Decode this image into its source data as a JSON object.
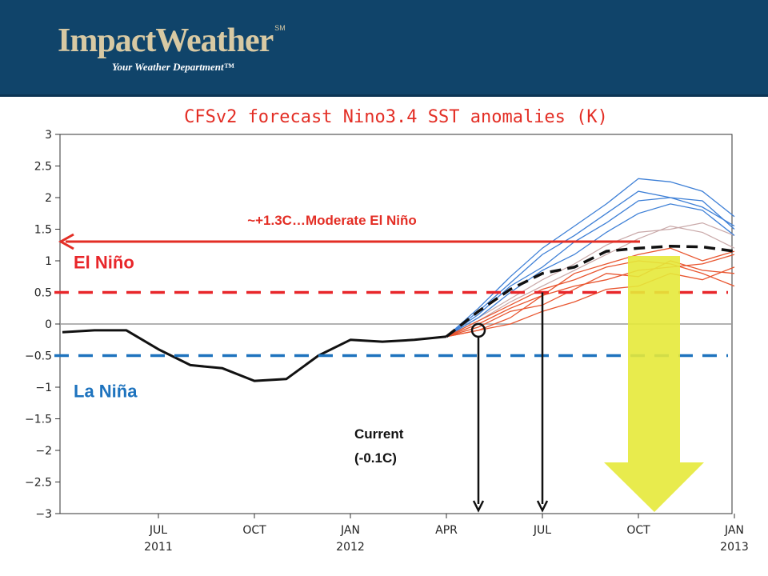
{
  "header": {
    "logo": "ImpactWeather",
    "logo_mark": "SM",
    "tagline": "Your Weather Department™"
  },
  "chart_data": {
    "type": "line",
    "title": "CFSv2 forecast Nino3.4 SST anomalies (K)",
    "xlabel": "",
    "ylabel": "",
    "ylim": [
      -3,
      3
    ],
    "grid": false,
    "y_ticks": [
      -3,
      -2.5,
      -2,
      -1.5,
      -1,
      -0.5,
      0,
      0.5,
      1,
      1.5,
      2,
      2.5,
      3
    ],
    "y_tick_labels": [
      "−3",
      "−2.5",
      "−2",
      "−1.5",
      "−1",
      "−0.5",
      "0",
      "0.5",
      "1",
      "1.5",
      "2",
      "2.5",
      "3"
    ],
    "x_ticks": [
      {
        "month": "JUL",
        "year": "2011",
        "pos": 3
      },
      {
        "month": "OCT",
        "year": "",
        "pos": 6
      },
      {
        "month": "JAN",
        "year": "2012",
        "pos": 9
      },
      {
        "month": "APR",
        "year": "",
        "pos": 12
      },
      {
        "month": "JUL",
        "year": "",
        "pos": 15
      },
      {
        "month": "OCT",
        "year": "",
        "pos": 18
      },
      {
        "month": "JAN",
        "year": "2013",
        "pos": 21
      }
    ],
    "xlim": [
      0,
      21
    ],
    "observed": {
      "x": [
        0,
        1,
        2,
        3,
        4,
        5,
        6,
        7,
        8,
        9,
        10,
        11,
        12
      ],
      "y": [
        -0.13,
        -0.1,
        -0.1,
        -0.4,
        -0.65,
        -0.7,
        -0.9,
        -0.87,
        -0.5,
        -0.25,
        -0.28,
        -0.25,
        -0.2
      ]
    },
    "forecast_mean": {
      "x": [
        12,
        13,
        14,
        15,
        16,
        17,
        18,
        19,
        20,
        21
      ],
      "y": [
        -0.2,
        0.2,
        0.55,
        0.8,
        0.9,
        1.15,
        1.2,
        1.23,
        1.22,
        1.15
      ]
    },
    "ensemble_blue": [
      [
        -0.2,
        0.25,
        0.75,
        1.2,
        1.55,
        1.9,
        2.3,
        2.25,
        2.1,
        1.7
      ],
      [
        -0.2,
        0.15,
        0.6,
        0.9,
        1.3,
        1.6,
        1.95,
        2.0,
        1.85,
        1.55
      ],
      [
        -0.2,
        0.1,
        0.5,
        0.85,
        1.1,
        1.45,
        1.75,
        1.9,
        1.8,
        1.4
      ],
      [
        -0.2,
        0.2,
        0.65,
        1.1,
        1.4,
        1.75,
        2.1,
        2.0,
        1.95,
        1.5
      ]
    ],
    "ensemble_red": [
      [
        -0.2,
        -0.1,
        0.1,
        0.45,
        0.6,
        0.7,
        0.85,
        0.9,
        0.95,
        1.1
      ],
      [
        -0.2,
        -0.05,
        0.2,
        0.3,
        0.55,
        0.8,
        0.75,
        1.0,
        0.85,
        0.8
      ],
      [
        -0.2,
        0.05,
        0.3,
        0.55,
        0.7,
        0.9,
        1.0,
        0.95,
        0.8,
        0.6
      ],
      [
        -0.2,
        -0.1,
        0.0,
        0.2,
        0.35,
        0.55,
        0.6,
        0.8,
        0.7,
        0.9
      ],
      [
        -0.2,
        0.0,
        0.25,
        0.45,
        0.8,
        0.95,
        1.1,
        1.2,
        1.0,
        1.15
      ]
    ],
    "ensemble_grey": [
      [
        -0.2,
        0.1,
        0.4,
        0.7,
        0.95,
        1.25,
        1.45,
        1.5,
        1.6,
        1.4
      ],
      [
        -0.2,
        0.05,
        0.35,
        0.6,
        0.85,
        1.1,
        1.35,
        1.55,
        1.45,
        1.2
      ]
    ],
    "thresholds": [
      {
        "value": 0.5,
        "label": "El Niño",
        "color": "#e8262a"
      },
      {
        "value": -0.5,
        "label": "La Niña",
        "color": "#1e73be"
      }
    ],
    "annotations": {
      "moderate_label": "~+1.3C…Moderate El Niño",
      "moderate_value": 1.3,
      "current_label_line1": "Current",
      "current_label_line2": "(-0.1C)",
      "current_x": 13,
      "current_y": -0.1,
      "future_x": 15
    },
    "colors": {
      "observed": "#111111",
      "blue": "#3d7fd6",
      "red": "#e8552f",
      "grey": "#c9a9a9",
      "title": "#e32e25",
      "arrow": "#e5e93a"
    }
  }
}
